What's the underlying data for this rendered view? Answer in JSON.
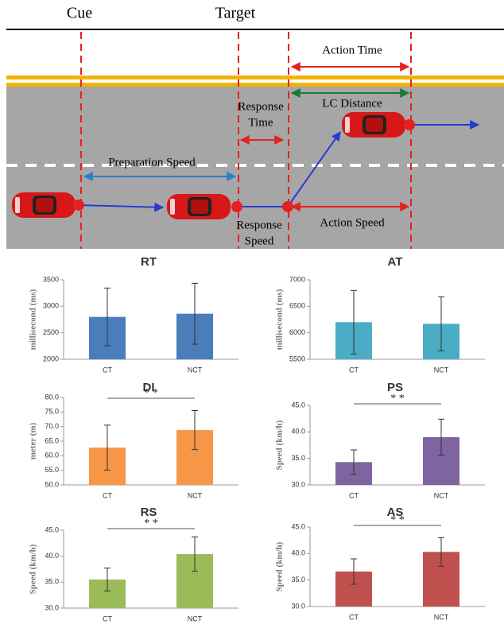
{
  "diagram": {
    "cue": "Cue",
    "target": "Target",
    "action_time": "Action Time",
    "lc_distance": "LC Distance",
    "response_time": [
      "Response",
      "Time"
    ],
    "preparation_speed": "Preparation Speed",
    "response_speed": [
      "Response",
      "Speed"
    ],
    "action_speed": "Action Speed"
  },
  "chart_data": [
    {
      "type": "bar",
      "title": "RT",
      "ylabel": "millisecond (ms)",
      "categories": [
        "CT",
        "NCT"
      ],
      "values": [
        2800,
        2860
      ],
      "errors": [
        545,
        575
      ],
      "color": "#4a7ebb",
      "ylim": [
        2000,
        3500
      ],
      "yticks": [
        2000,
        2500,
        3000,
        3500
      ]
    },
    {
      "type": "bar",
      "title": "AT",
      "ylabel": "millisecond (ms)",
      "categories": [
        "CT",
        "NCT"
      ],
      "values": [
        6200,
        6170
      ],
      "errors": [
        600,
        510
      ],
      "color": "#4bacc6",
      "ylim": [
        5500,
        7000
      ],
      "yticks": [
        5500,
        6000,
        6500,
        7000
      ]
    },
    {
      "type": "bar",
      "title": "DI",
      "ylabel": "meter (m)",
      "categories": [
        "CT",
        "NCT"
      ],
      "values": [
        62.8,
        68.8
      ],
      "errors": [
        7.7,
        6.7
      ],
      "color": "#f79646",
      "ylim": [
        50,
        80
      ],
      "yticks": [
        {
          "value": 50,
          "label": "50.0"
        },
        {
          "value": 55,
          "label": "55.0"
        },
        {
          "value": 60,
          "label": "60.0"
        },
        {
          "value": 65,
          "label": "65.0"
        },
        {
          "value": 70,
          "label": "70.0"
        },
        {
          "value": 75,
          "label": "75.0"
        },
        {
          "value": 80,
          "label": "80.0"
        }
      ],
      "significance": "* *"
    },
    {
      "type": "bar",
      "title": "PS",
      "ylabel": "Speed (km/h)",
      "categories": [
        "CT",
        "NCT"
      ],
      "values": [
        34.3,
        39.0
      ],
      "errors": [
        2.3,
        3.4
      ],
      "color": "#8064a2",
      "ylim": [
        30,
        45
      ],
      "yticks": [
        {
          "value": 30,
          "label": "30.0"
        },
        {
          "value": 35,
          "label": "35.0"
        },
        {
          "value": 40,
          "label": "40.0"
        },
        {
          "value": 45,
          "label": "45.0"
        }
      ],
      "significance": "* *"
    },
    {
      "type": "bar",
      "title": "RS",
      "ylabel": "Speed (km/h)",
      "categories": [
        "CT",
        "NCT"
      ],
      "values": [
        35.5,
        40.4
      ],
      "errors": [
        2.2,
        3.3
      ],
      "color": "#9bbb59",
      "ylim": [
        30,
        45
      ],
      "yticks": [
        {
          "value": 30,
          "label": "30.0"
        },
        {
          "value": 35,
          "label": "35.0"
        },
        {
          "value": 40,
          "label": "40.0"
        },
        {
          "value": 45,
          "label": "45.0"
        }
      ],
      "significance": "* *"
    },
    {
      "type": "bar",
      "title": "AS",
      "ylabel": "Speed (km/h)",
      "categories": [
        "CT",
        "NCT"
      ],
      "values": [
        36.6,
        40.3
      ],
      "errors": [
        2.4,
        2.7
      ],
      "color": "#c0504d",
      "ylim": [
        30,
        45
      ],
      "yticks": [
        {
          "value": 30,
          "label": "30.0"
        },
        {
          "value": 35,
          "label": "35.0"
        },
        {
          "value": 40,
          "label": "40.0"
        },
        {
          "value": 45,
          "label": "45.0"
        }
      ],
      "significance": "* *"
    }
  ]
}
